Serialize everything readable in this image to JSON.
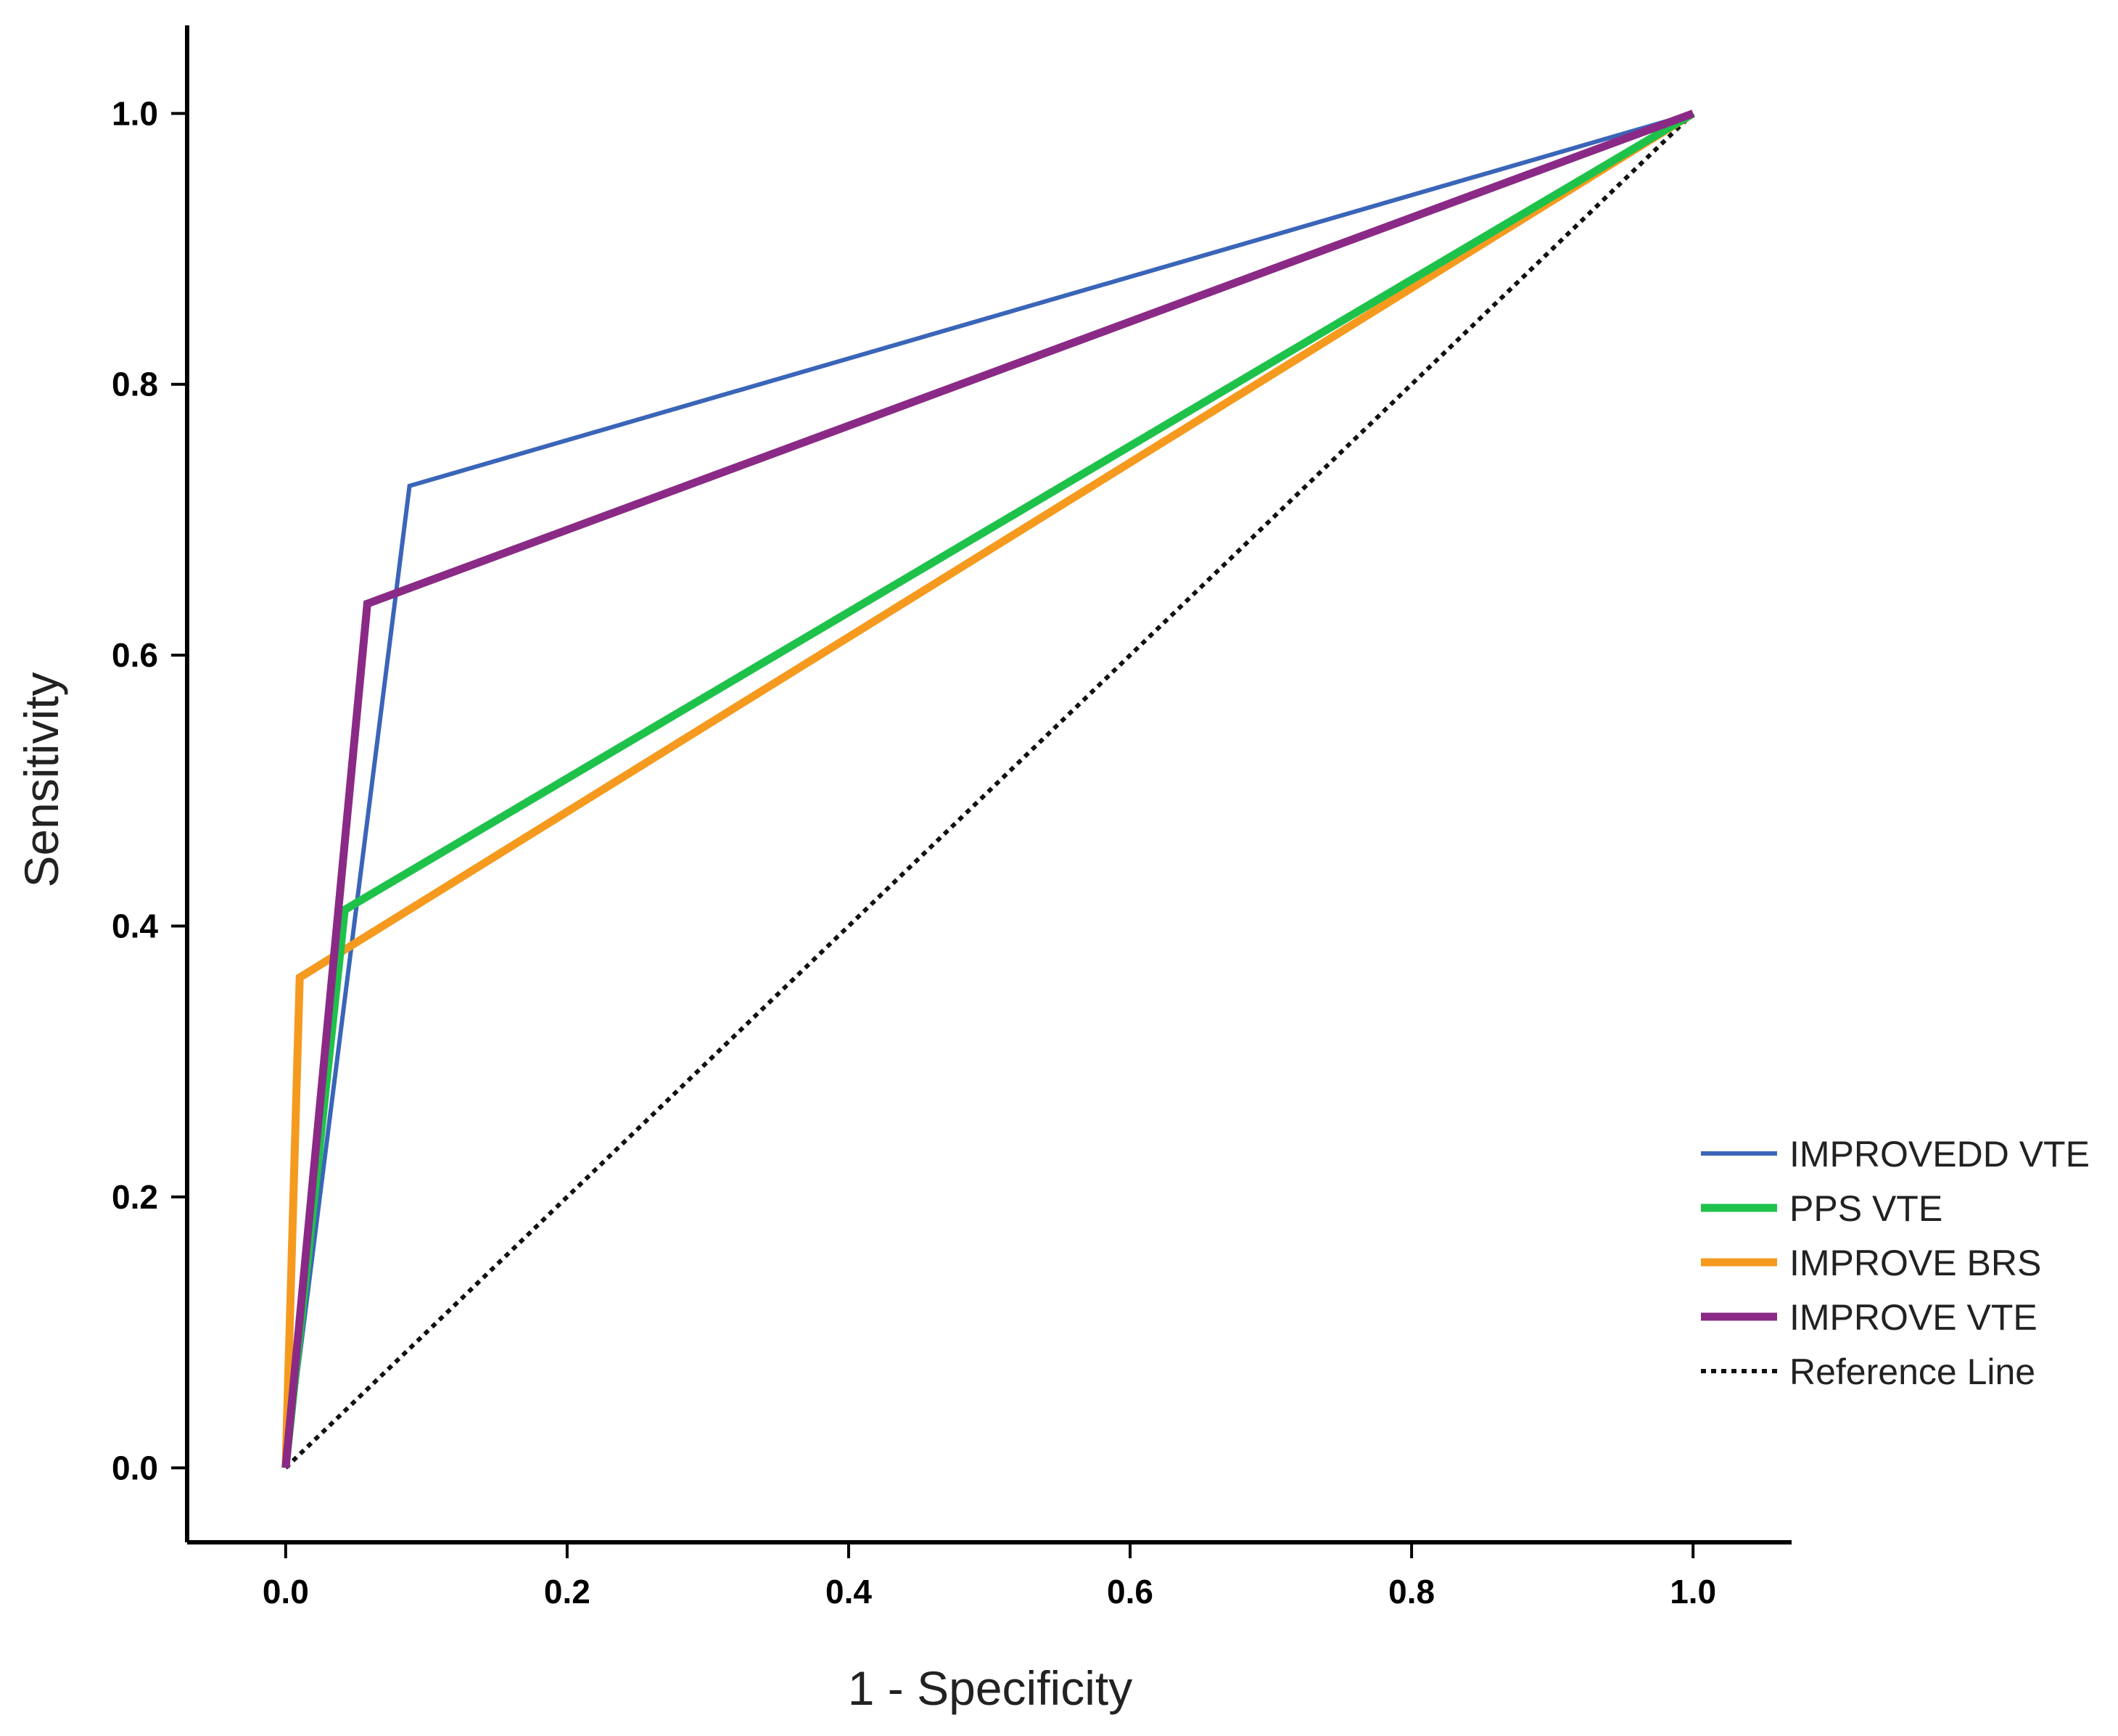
{
  "chart_data": {
    "type": "line",
    "xlabel": "1 - Specificity",
    "ylabel": "Sensitivity",
    "xlim": [
      -0.07,
      1.07
    ],
    "ylim": [
      -0.055,
      1.065
    ],
    "xticks": [
      0.0,
      0.2,
      0.4,
      0.6,
      0.8,
      1.0
    ],
    "yticks": [
      0.0,
      0.2,
      0.4,
      0.6,
      0.8,
      1.0
    ],
    "xtick_labels": [
      "0.0",
      "0.2",
      "0.4",
      "0.6",
      "0.8",
      "1.0"
    ],
    "ytick_labels": [
      "0.0",
      "0.2",
      "0.4",
      "0.6",
      "0.8",
      "1.0"
    ],
    "grid": false,
    "legend_position": "right",
    "series": [
      {
        "name": "IMPROVEDD VTE",
        "color": "#3a65b8",
        "width": "thin",
        "x": [
          0.0,
          0.088,
          1.0
        ],
        "y": [
          0.0,
          0.725,
          1.0
        ]
      },
      {
        "name": "PPS VTE",
        "color": "#1ec24a",
        "width": "thick",
        "x": [
          0.0,
          0.042,
          1.0
        ],
        "y": [
          0.0,
          0.412,
          1.0
        ]
      },
      {
        "name": "IMPROVE BRS",
        "color": "#f59a1e",
        "width": "thick",
        "x": [
          0.0,
          0.01,
          1.0
        ],
        "y": [
          0.0,
          0.362,
          1.0
        ]
      },
      {
        "name": "IMPROVE VTE",
        "color": "#8a2a86",
        "width": "thick",
        "x": [
          0.0,
          0.058,
          1.0
        ],
        "y": [
          0.0,
          0.638,
          1.0
        ]
      },
      {
        "name": "Reference Line",
        "color": "#111111",
        "width": "dotted",
        "x": [
          0.0,
          1.0
        ],
        "y": [
          0.0,
          1.0
        ]
      }
    ]
  }
}
